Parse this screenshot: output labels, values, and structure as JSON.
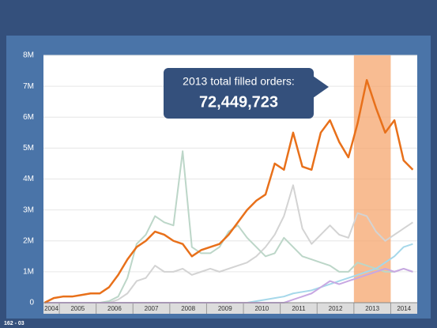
{
  "chart_data": {
    "type": "line",
    "annotation": {
      "title": "2013 total filled orders:",
      "value": "72,449,723"
    },
    "highlight_x": [
      2013,
      2014
    ],
    "highlight_color": "#f6a56e",
    "footer": "162 - 03",
    "x": [
      2004.6,
      2004.85,
      2005.1,
      2005.35,
      2005.6,
      2005.85,
      2006.1,
      2006.35,
      2006.6,
      2006.85,
      2007.1,
      2007.35,
      2007.6,
      2007.85,
      2008.1,
      2008.35,
      2008.6,
      2008.85,
      2009.1,
      2009.35,
      2009.6,
      2009.85,
      2010.1,
      2010.35,
      2010.6,
      2010.85,
      2011.1,
      2011.35,
      2011.6,
      2011.85,
      2012.1,
      2012.35,
      2012.6,
      2012.85,
      2013.1,
      2013.35,
      2013.6,
      2013.85,
      2014.1,
      2014.35,
      2014.6
    ],
    "series": [
      {
        "color": "#d3d3d3",
        "values": [
          0,
          0,
          0,
          0,
          0,
          0,
          0,
          0,
          100000,
          300000,
          700000,
          800000,
          1200000,
          1000000,
          1000000,
          1100000,
          900000,
          1000000,
          1100000,
          1000000,
          1100000,
          1200000,
          1300000,
          1500000,
          1800000,
          2200000,
          2800000,
          3800000,
          2400000,
          1900000,
          2200000,
          2500000,
          2200000,
          2100000,
          2900000,
          2800000,
          2300000,
          2000000,
          2200000,
          2400000,
          2600000
        ]
      },
      {
        "color": "#bcd6c8",
        "values": [
          0,
          0,
          0,
          0,
          0,
          0,
          0,
          50000,
          200000,
          800000,
          1900000,
          2200000,
          2800000,
          2600000,
          2500000,
          4900000,
          1800000,
          1600000,
          1600000,
          1800000,
          2300000,
          2500000,
          2100000,
          1800000,
          1500000,
          1600000,
          2100000,
          1800000,
          1500000,
          1400000,
          1300000,
          1200000,
          1000000,
          1000000,
          1300000,
          1200000,
          1100000,
          1000000,
          1000000,
          1100000,
          1000000
        ]
      },
      {
        "color": "#a6d8ea",
        "values": [
          0,
          0,
          0,
          0,
          0,
          0,
          0,
          0,
          0,
          0,
          0,
          0,
          0,
          0,
          0,
          0,
          0,
          0,
          0,
          0,
          0,
          0,
          0,
          50000,
          100000,
          150000,
          200000,
          300000,
          350000,
          400000,
          500000,
          600000,
          700000,
          800000,
          900000,
          1000000,
          1100000,
          1300000,
          1500000,
          1800000,
          1900000
        ]
      },
      {
        "color": "#c8a8e2",
        "values": [
          0,
          0,
          0,
          0,
          0,
          0,
          0,
          0,
          0,
          0,
          0,
          0,
          0,
          0,
          0,
          0,
          0,
          0,
          0,
          0,
          0,
          0,
          0,
          0,
          0,
          0,
          0,
          100000,
          200000,
          300000,
          500000,
          700000,
          600000,
          700000,
          800000,
          900000,
          1000000,
          1100000,
          1000000,
          1100000,
          1000000
        ]
      },
      {
        "color": "#e8701a",
        "values": [
          0,
          150000,
          200000,
          200000,
          250000,
          300000,
          300000,
          500000,
          900000,
          1400000,
          1800000,
          2000000,
          2300000,
          2200000,
          2000000,
          1900000,
          1500000,
          1700000,
          1800000,
          1900000,
          2200000,
          2600000,
          3000000,
          3300000,
          3500000,
          4500000,
          4300000,
          5500000,
          4400000,
          4300000,
          5500000,
          5900000,
          5200000,
          4700000,
          5800000,
          7200000,
          6300000,
          5500000,
          5900000,
          4600000,
          4300000
        ]
      }
    ],
    "xlim": [
      2004.57,
      2014.72
    ],
    "xticks": [
      2004,
      2005,
      2006,
      2007,
      2008,
      2009,
      2010,
      2011,
      2012,
      2013,
      2014
    ],
    "ylim": [
      0,
      8000000
    ],
    "yticks": [
      0,
      {
        "value": 1000000,
        "label": "1M"
      },
      {
        "value": 2000000,
        "label": "2M"
      },
      {
        "value": 3000000,
        "label": "3M"
      },
      {
        "value": 4000000,
        "label": "4M"
      },
      {
        "value": 5000000,
        "label": "5M"
      },
      {
        "value": 6000000,
        "label": "6M"
      },
      {
        "value": 7000000,
        "label": "7M"
      },
      {
        "value": 8000000,
        "label": "8M"
      }
    ],
    "grid": true
  }
}
